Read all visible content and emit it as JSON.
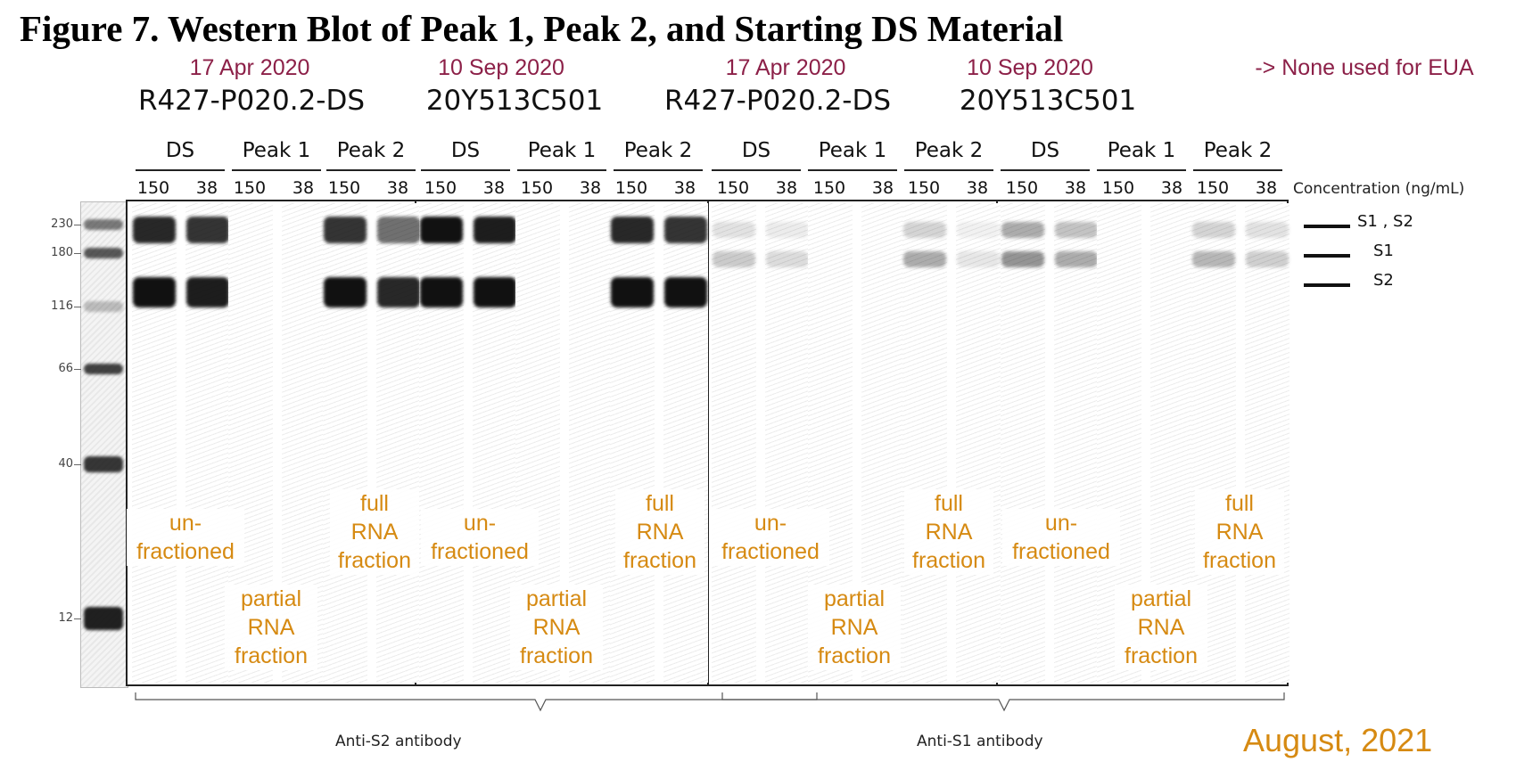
{
  "figure_title": "Figure 7.    Western Blot of Peak 1, Peak 2, and Starting DS Material",
  "dates": [
    "17 Apr 2020",
    "10 Sep 2020",
    "17 Apr 2020",
    "10 Sep 2020"
  ],
  "lots": [
    "R427-P020.2-DS",
    "20Y513C501",
    "R427-P020.2-DS",
    "20Y513C501"
  ],
  "eua_note": "-> None used for EUA",
  "group_labels": [
    "DS",
    "Peak 1",
    "Peak 2",
    "DS",
    "Peak 1",
    "Peak 2",
    "DS",
    "Peak 1",
    "Peak 2",
    "DS",
    "Peak 1",
    "Peak 2"
  ],
  "concentrations": [
    "150",
    "38"
  ],
  "concentration_label": "Concentration (ng/mL)",
  "mw_markers": [
    "230",
    "180",
    "116",
    "66",
    "40",
    "12"
  ],
  "band_labels": [
    "S1 , S2",
    "S1",
    "S2"
  ],
  "annotations": {
    "unfractioned": "un-\nfractioned",
    "full_rna": "full\nRNA\nfraction",
    "partial_rna": "partial\nRNA\nfraction"
  },
  "antibody_labels": [
    "Anti-S2  antibody",
    "Anti-S1  antibody"
  ],
  "footer_date": "August, 2021",
  "lane_intensities": {
    "description_free": true,
    "anti_s2": [
      {
        "s1s2": 0.9,
        "s2": 1.0
      },
      {
        "s1s2": 0.85,
        "s2": 0.95
      },
      {
        "s1s2": 0.0,
        "s2": 0.0
      },
      {
        "s1s2": 0.0,
        "s2": 0.0
      },
      {
        "s1s2": 0.85,
        "s2": 1.0
      },
      {
        "s1s2": 0.6,
        "s2": 0.9
      },
      {
        "s1s2": 1.0,
        "s2": 1.0
      },
      {
        "s1s2": 0.95,
        "s2": 1.0
      },
      {
        "s1s2": 0.0,
        "s2": 0.0
      },
      {
        "s1s2": 0.0,
        "s2": 0.0
      },
      {
        "s1s2": 0.9,
        "s2": 1.0
      },
      {
        "s1s2": 0.85,
        "s2": 1.0
      }
    ],
    "anti_s1": [
      {
        "s1s2": 0.12,
        "s1": 0.22
      },
      {
        "s1s2": 0.08,
        "s1": 0.15
      },
      {
        "s1s2": 0.0,
        "s1": 0.0
      },
      {
        "s1s2": 0.0,
        "s1": 0.0
      },
      {
        "s1s2": 0.18,
        "s1": 0.35
      },
      {
        "s1s2": 0.06,
        "s1": 0.1
      },
      {
        "s1s2": 0.35,
        "s1": 0.45
      },
      {
        "s1s2": 0.25,
        "s1": 0.35
      },
      {
        "s1s2": 0.0,
        "s1": 0.0
      },
      {
        "s1s2": 0.0,
        "s1": 0.0
      },
      {
        "s1s2": 0.18,
        "s1": 0.3
      },
      {
        "s1s2": 0.12,
        "s1": 0.2
      }
    ]
  },
  "colors": {
    "title": "#000000",
    "date_note": "#8c2048",
    "annotation": "#d68a12",
    "band": "#111111"
  }
}
